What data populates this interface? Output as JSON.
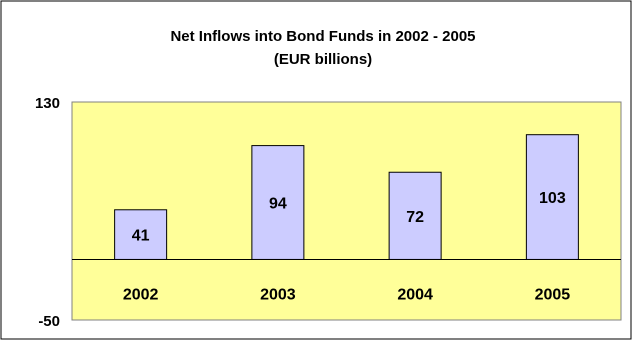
{
  "chart_data": {
    "type": "bar",
    "title": "Net Inflows into Bond Funds in 2002 -  2005",
    "subtitle": "(EUR billions)",
    "categories": [
      "2002",
      "2003",
      "2004",
      "2005"
    ],
    "values": [
      41,
      94,
      72,
      103
    ],
    "data_labels": [
      "41",
      "94",
      "72",
      "103"
    ],
    "ylim": [
      -50,
      130
    ],
    "y_tick_labels": [
      "130",
      "-50"
    ],
    "xlabel": "",
    "ylabel": "",
    "grid": false,
    "legend": "none"
  },
  "colors": {
    "page_background": "#ffffff",
    "plot_background": "#ffff99",
    "bar_fill": "#ccccff",
    "bar_stroke": "#000000",
    "text": "#000000"
  }
}
